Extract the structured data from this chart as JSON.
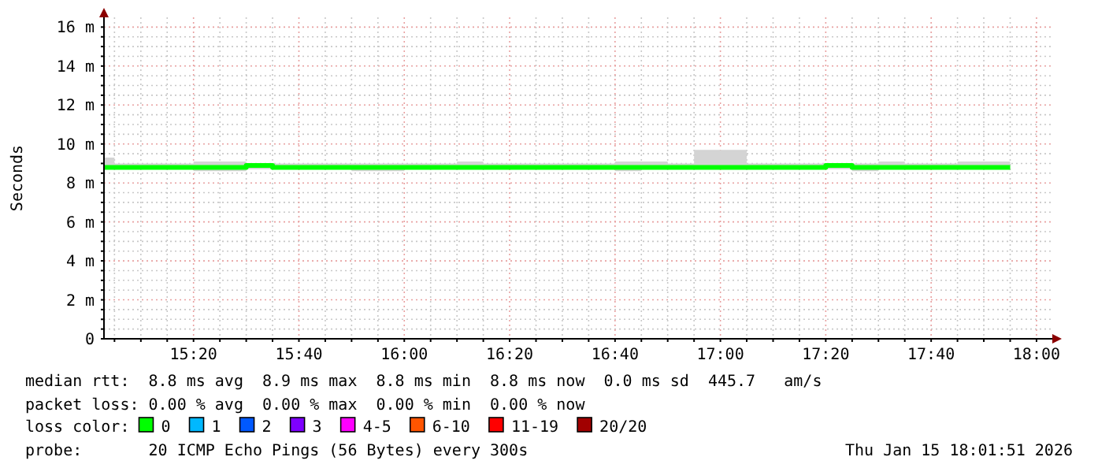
{
  "chart_data": {
    "type": "step",
    "ylabel": "Seconds",
    "legend": "bottom",
    "legend_title": "loss color:",
    "grid": true,
    "x": [
      15.05,
      15.0833,
      15.1667,
      15.25,
      15.3333,
      15.4167,
      15.5,
      15.5833,
      15.6667,
      15.75,
      15.8333,
      15.9167,
      16,
      16.0833,
      16.1667,
      16.25,
      16.3333,
      16.4167,
      16.5,
      16.5833,
      16.6667,
      16.75,
      16.8333,
      16.9167,
      17,
      17.0833,
      17.1667,
      17.25,
      17.3333,
      17.4167,
      17.5,
      17.5833,
      17.6667,
      17.75,
      17.8333,
      17.9167
    ],
    "xlim": [
      15.05,
      18.05
    ],
    "xticks": [
      {
        "value": 15.0833,
        "label": null
      },
      {
        "value": 15.1667,
        "label": null
      },
      {
        "value": 15.25,
        "label": null
      },
      {
        "value": 15.3333,
        "label": "15:20"
      },
      {
        "value": 15.4167,
        "label": null
      },
      {
        "value": 15.5,
        "label": null
      },
      {
        "value": 15.5833,
        "label": null
      },
      {
        "value": 15.6667,
        "label": "15:40"
      },
      {
        "value": 15.75,
        "label": null
      },
      {
        "value": 15.8333,
        "label": null
      },
      {
        "value": 15.9167,
        "label": null
      },
      {
        "value": 16,
        "label": "16:00"
      },
      {
        "value": 16.0833,
        "label": null
      },
      {
        "value": 16.1667,
        "label": null
      },
      {
        "value": 16.25,
        "label": null
      },
      {
        "value": 16.3333,
        "label": "16:20"
      },
      {
        "value": 16.4167,
        "label": null
      },
      {
        "value": 16.5,
        "label": null
      },
      {
        "value": 16.5833,
        "label": null
      },
      {
        "value": 16.6667,
        "label": "16:40"
      },
      {
        "value": 16.75,
        "label": null
      },
      {
        "value": 16.8333,
        "label": null
      },
      {
        "value": 16.9167,
        "label": null
      },
      {
        "value": 17,
        "label": "17:00"
      },
      {
        "value": 17.0833,
        "label": null
      },
      {
        "value": 17.1667,
        "label": null
      },
      {
        "value": 17.25,
        "label": null
      },
      {
        "value": 17.3333,
        "label": "17:20"
      },
      {
        "value": 17.4167,
        "label": null
      },
      {
        "value": 17.5,
        "label": null
      },
      {
        "value": 17.5833,
        "label": null
      },
      {
        "value": 17.6667,
        "label": "17:40"
      },
      {
        "value": 17.75,
        "label": null
      },
      {
        "value": 17.8333,
        "label": null
      },
      {
        "value": 17.9167,
        "label": null
      },
      {
        "value": 18,
        "label": "18:00"
      }
    ],
    "ylim": [
      0,
      16.5
    ],
    "yticks": [
      0,
      {
        "value": 0.5,
        "label": null
      },
      {
        "value": 1,
        "label": null
      },
      {
        "value": 1.5,
        "label": null
      },
      {
        "value": 2,
        "label": "2 m"
      },
      {
        "value": 2.5,
        "label": null
      },
      {
        "value": 3,
        "label": null
      },
      {
        "value": 3.5,
        "label": null
      },
      {
        "value": 4,
        "label": "4 m"
      },
      {
        "value": 4.5,
        "label": null
      },
      {
        "value": 5,
        "label": null
      },
      {
        "value": 5.5,
        "label": null
      },
      {
        "value": 6,
        "label": "6 m"
      },
      {
        "value": 6.5,
        "label": null
      },
      {
        "value": 7,
        "label": null
      },
      {
        "value": 7.5,
        "label": null
      },
      {
        "value": 8,
        "label": "8 m"
      },
      {
        "value": 8.5,
        "label": null
      },
      {
        "value": 9,
        "label": null
      },
      {
        "value": 9.5,
        "label": null
      },
      {
        "value": 10,
        "label": "10 m"
      },
      {
        "value": 10.5,
        "label": null
      },
      {
        "value": 11,
        "label": null
      },
      {
        "value": 11.5,
        "label": null
      },
      {
        "value": 12,
        "label": "12 m"
      },
      {
        "value": 12.5,
        "label": null
      },
      {
        "value": 13,
        "label": null
      },
      {
        "value": 13.5,
        "label": null
      },
      {
        "value": 14,
        "label": "14 m"
      },
      {
        "value": 14.5,
        "label": null
      },
      {
        "value": 15,
        "label": null
      },
      {
        "value": 15.5,
        "label": null
      },
      {
        "value": 16,
        "label": "16 m"
      }
    ],
    "series": [
      {
        "name": "0",
        "color": "#00ff00",
        "values": [
          8.8,
          8.8,
          8.8,
          8.8,
          8.8,
          8.8,
          8.9,
          8.8,
          8.8,
          8.8,
          8.8,
          8.8,
          8.8,
          8.8,
          8.8,
          8.8,
          8.8,
          8.8,
          8.8,
          8.8,
          8.8,
          8.8,
          8.8,
          8.8,
          8.8,
          8.8,
          8.8,
          8.8,
          8.9,
          8.8,
          8.8,
          8.8,
          8.8,
          8.8,
          8.8,
          8.8
        ],
        "lower": [
          8.7,
          8.7,
          8.7,
          8.7,
          8.6,
          8.6,
          8.7,
          8.7,
          8.7,
          8.7,
          8.6,
          8.6,
          8.7,
          8.7,
          8.7,
          8.7,
          8.7,
          8.7,
          8.7,
          8.7,
          8.6,
          8.7,
          8.7,
          8.7,
          8.7,
          8.7,
          8.7,
          8.7,
          8.7,
          8.6,
          8.7,
          8.7,
          8.7,
          8.7,
          8.7,
          8.7
        ],
        "upper": [
          9.3,
          9,
          9,
          9,
          9.1,
          9.1,
          9,
          9,
          9,
          9,
          9,
          9,
          9,
          9,
          9.1,
          9,
          9,
          9,
          9,
          9,
          9.1,
          9.1,
          9,
          9.7,
          9.7,
          9,
          9,
          9,
          9,
          9,
          9.1,
          9,
          9,
          9.1,
          9.1,
          9.1
        ]
      },
      {
        "name": "1",
        "color": "#00b8ff",
        "values": [
          null,
          null,
          null,
          null,
          null,
          null,
          null,
          null,
          null,
          null,
          null,
          null,
          null,
          null,
          null,
          null,
          null,
          null,
          null,
          null,
          null,
          null,
          null,
          null,
          null,
          null,
          null,
          null,
          null,
          null,
          null,
          null,
          null,
          null,
          null,
          null
        ]
      },
      {
        "name": "2",
        "color": "#0059ff",
        "values": [
          null,
          null,
          null,
          null,
          null,
          null,
          null,
          null,
          null,
          null,
          null,
          null,
          null,
          null,
          null,
          null,
          null,
          null,
          null,
          null,
          null,
          null,
          null,
          null,
          null,
          null,
          null,
          null,
          null,
          null,
          null,
          null,
          null,
          null,
          null,
          null
        ]
      },
      {
        "name": "3",
        "color": "#7e00ff",
        "values": [
          null,
          null,
          null,
          null,
          null,
          null,
          null,
          null,
          null,
          null,
          null,
          null,
          null,
          null,
          null,
          null,
          null,
          null,
          null,
          null,
          null,
          null,
          null,
          null,
          null,
          null,
          null,
          null,
          null,
          null,
          null,
          null,
          null,
          null,
          null,
          null
        ]
      },
      {
        "name": "4-5",
        "color": "#ff00ff",
        "values": [
          null,
          null,
          null,
          null,
          null,
          null,
          null,
          null,
          null,
          null,
          null,
          null,
          null,
          null,
          null,
          null,
          null,
          null,
          null,
          null,
          null,
          null,
          null,
          null,
          null,
          null,
          null,
          null,
          null,
          null,
          null,
          null,
          null,
          null,
          null,
          null
        ]
      },
      {
        "name": "6-10",
        "color": "#ff5500",
        "values": [
          null,
          null,
          null,
          null,
          null,
          null,
          null,
          null,
          null,
          null,
          null,
          null,
          null,
          null,
          null,
          null,
          null,
          null,
          null,
          null,
          null,
          null,
          null,
          null,
          null,
          null,
          null,
          null,
          null,
          null,
          null,
          null,
          null,
          null,
          null,
          null
        ]
      },
      {
        "name": "11-19",
        "color": "#ff0000",
        "values": [
          null,
          null,
          null,
          null,
          null,
          null,
          null,
          null,
          null,
          null,
          null,
          null,
          null,
          null,
          null,
          null,
          null,
          null,
          null,
          null,
          null,
          null,
          null,
          null,
          null,
          null,
          null,
          null,
          null,
          null,
          null,
          null,
          null,
          null,
          null,
          null
        ]
      },
      {
        "name": "20/20",
        "color": "#a10000",
        "values": [
          null,
          null,
          null,
          null,
          null,
          null,
          null,
          null,
          null,
          null,
          null,
          null,
          null,
          null,
          null,
          null,
          null,
          null,
          null,
          null,
          null,
          null,
          null,
          null,
          null,
          null,
          null,
          null,
          null,
          null,
          null,
          null,
          null,
          null,
          null,
          null
        ]
      }
    ],
    "annotations": [
      "median rtt:  8.8 ms avg  8.9 ms max  8.8 ms min  8.8 ms now  0.0 ms sd  445.7   am/s",
      "packet loss: 0.00 % avg  0.00 % max  0.00 % min  0.00 % now",
      "probe:       20 ICMP Echo Pings (56 Bytes) every 300s",
      "Thu Jan 15 18:01:51 2026"
    ]
  }
}
